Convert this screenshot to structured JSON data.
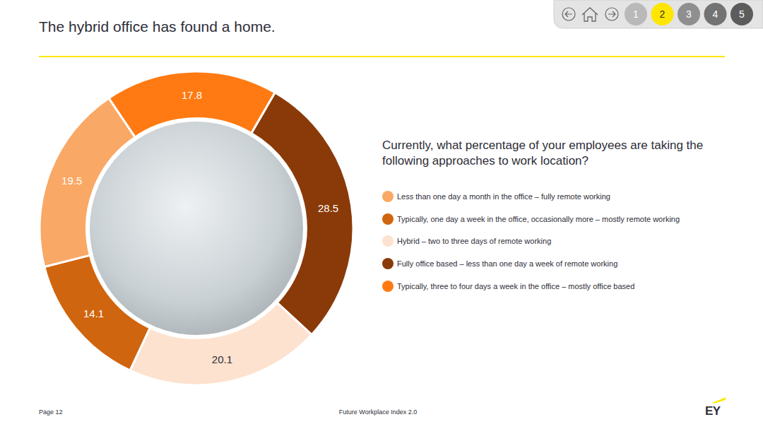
{
  "page": {
    "nav": [
      "1",
      "2",
      "3",
      "4",
      "5"
    ],
    "footer_page": "Page 12",
    "footer_source": "Future Workplace Index 2.0",
    "logo": "EY"
  },
  "chart_data": {
    "type": "pie",
    "title": "The hybrid office has found a home.",
    "subtitle": "Currently, what percentage of your employees are taking the following approaches to work location?",
    "categories": [
      "Typically, three to four days a week in the office – mostly office based",
      "Fully office based – less than one day a week of remote working",
      "Hybrid – two to three days of remote working",
      "Typically, one day a week in the office, occasionally more – mostly remote working",
      "Less than one day a month in the office – fully remote working"
    ],
    "values": [
      17.8,
      28.5,
      20.1,
      14.1,
      19.5
    ],
    "colors": [
      "#ff7a12",
      "#8a3a08",
      "#fde2cf",
      "#d0650f",
      "#f9a865"
    ],
    "data_labels": true,
    "legend": "right"
  }
}
